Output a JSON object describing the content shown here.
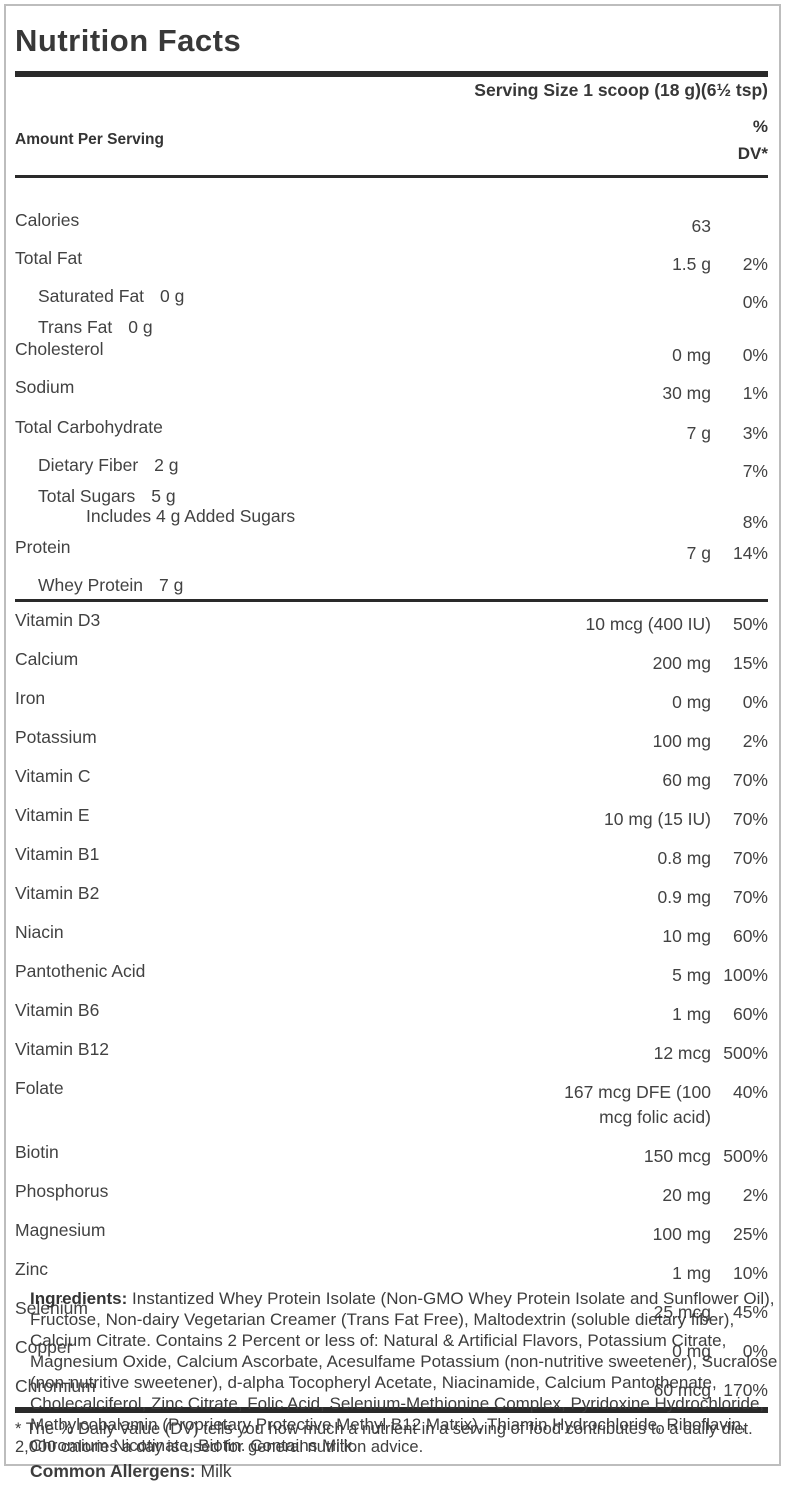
{
  "label": {
    "title": "Nutrition Facts",
    "serving_size": "Serving Size 1 scoop (18 g)(6½ tsp)",
    "header": {
      "amount_per_serving": "Amount Per Serving",
      "percent": "%",
      "dv": "DV*"
    },
    "macro_rows": [
      {
        "name": "Calories",
        "amount": "63",
        "indent": 0
      },
      {
        "name": "Total Fat",
        "amount": "1.5 g",
        "dv": "2%",
        "indent": 0
      },
      {
        "name": "Saturated Fat",
        "inline_amount": "0 g",
        "dv": "0%",
        "indent": 1
      },
      {
        "name": "Trans Fat",
        "inline_amount": "0 g",
        "indent": 1
      },
      {
        "name": "Cholesterol",
        "amount": "0 mg",
        "dv": "0%",
        "indent": 0
      },
      {
        "name": "Sodium",
        "amount": "30 mg",
        "dv": "1%",
        "indent": 0
      },
      {
        "name": "Total Carbohydrate",
        "amount": "7 g",
        "dv": "3%",
        "indent": 0
      },
      {
        "name": "Dietary Fiber",
        "inline_amount": "2 g",
        "dv": "7%",
        "indent": 1
      },
      {
        "name": "Total Sugars",
        "inline_amount": "5 g",
        "indent": 1
      },
      {
        "name": "Includes 4 g Added Sugars",
        "dv": "8%",
        "indent": 2
      },
      {
        "name": "Protein",
        "amount": "7 g",
        "dv": "14%",
        "indent": 0
      },
      {
        "name": "Whey Protein",
        "inline_amount": "7 g",
        "indent": 1
      }
    ],
    "micro_rows": [
      {
        "name": "Vitamin D3",
        "amount": "10 mcg (400 IU)",
        "dv": "50%"
      },
      {
        "name": "Calcium",
        "amount": "200 mg",
        "dv": "15%"
      },
      {
        "name": "Iron",
        "amount": "0 mg",
        "dv": "0%"
      },
      {
        "name": "Potassium",
        "amount": "100 mg",
        "dv": "2%"
      },
      {
        "name": "Vitamin C",
        "amount": "60 mg",
        "dv": "70%"
      },
      {
        "name": "Vitamin E",
        "amount": "10 mg (15 IU)",
        "dv": "70%"
      },
      {
        "name": "Vitamin B1",
        "amount": "0.8 mg",
        "dv": "70%"
      },
      {
        "name": "Vitamin B2",
        "amount": "0.9 mg",
        "dv": "70%"
      },
      {
        "name": "Niacin",
        "amount": "10 mg",
        "dv": "60%"
      },
      {
        "name": "Pantothenic Acid",
        "amount": "5 mg",
        "dv": "100%"
      },
      {
        "name": "Vitamin B6",
        "amount": "1 mg",
        "dv": "60%"
      },
      {
        "name": "Vitamin B12",
        "amount": "12 mcg",
        "dv": "500%"
      },
      {
        "name": "Folate",
        "amount": "167 mcg DFE (100",
        "amount_line2": "mcg folic acid)",
        "dv": "40%"
      },
      {
        "name": "Biotin",
        "amount": "150 mcg",
        "dv": "500%"
      },
      {
        "name": "Phosphorus",
        "amount": "20 mg",
        "dv": "2%"
      },
      {
        "name": "Magnesium",
        "amount": "100 mg",
        "dv": "25%"
      },
      {
        "name": "Zinc",
        "amount": "1 mg",
        "dv": "10%"
      },
      {
        "name": "Selenium",
        "amount": "25 mcg",
        "dv": "45%"
      },
      {
        "name": "Copper",
        "amount": "0 mg",
        "dv": "0%"
      },
      {
        "name": "Chromium",
        "amount": "60 mcg",
        "dv": "170%"
      }
    ],
    "footnote": "* The % Daily Value (DV) tells you how much a nutrient in a serving of food contributes to a daily diet. 2,000 calories a day is used for general nutrition advice."
  },
  "ingredients": {
    "label": "Ingredients:",
    "text": " Instantized Whey Protein Isolate (Non-GMO Whey Protein Isolate and Sunflower Oil), Fructose, Non-dairy Vegetarian Creamer (Trans Fat Free), Maltodextrin (soluble dietary fiber), Calcium Citrate. Contains 2 Percent or less of: Natural & Artificial Flavors, Potassium Citrate, Magnesium Oxide, Calcium Ascorbate, Acesulfame Potassium (non-nutritive sweetener), Sucralose (non-nutritive sweetener), d-alpha Tocopheryl Acetate, Niacinamide, Calcium Pantothenate, Cholecalciferol, Zinc Citrate, Folic Acid, Selenium-Methionine Complex, Pyridoxine Hydrochloride, Methylcobalamin (Proprietary Protective Methyl B12 Matrix), Thiamin Hydrochloride, Riboflavin, Chromium Nicotinate, Biotin. Contains Milk."
  },
  "allergens": {
    "label": "Common Allergens:",
    "text": " Milk"
  },
  "colors": {
    "text": "#3d3d3d",
    "bars": "#2a2a2a",
    "border": "#bdbdbd",
    "background": "#ffffff"
  }
}
